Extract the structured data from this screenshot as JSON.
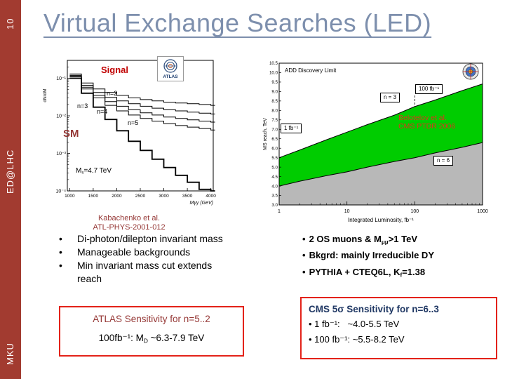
{
  "glyphs": {
    "bullet": "•"
  },
  "colors": {
    "sidebar": "#A23B30",
    "title": "#7D8FAD",
    "signal_red": "#C00000",
    "caption_brown": "#953735",
    "caption_red": "#E0301E",
    "box_border": "#E32219",
    "cms_navy": "#203864",
    "band_green": "#00CC00",
    "below_gray": "#B8B8B8"
  },
  "sidebar": {
    "top_label": "10",
    "middle_label": "ED@LHC",
    "bottom_label": "MKU"
  },
  "title": "Virtual Exchange Searches (LED)",
  "left_plot": {
    "signal_label": "Signal",
    "sm_label": "SM",
    "atlas_logo_text": "ATLAS",
    "curve_labels": [
      "n=2",
      "n=3",
      "n=4",
      "n=5"
    ],
    "ms_label": {
      "pre": "M",
      "sub": "s",
      "post": "=4.7 TeV"
    },
    "caption_line1": "Kabachenko et al.",
    "caption_line2": "ATL-PHYS-2001-012"
  },
  "right_plot": {
    "n3_label": "n = 3",
    "n6_label": "n = 6",
    "lum100_label": "100 fb⁻¹",
    "lum1_label": "1 fb⁻¹",
    "caption_line1": "Belotelov et al.",
    "caption_line2": "CMS PTDR 2006"
  },
  "bullets_left": [
    "Di-photon/dilepton invariant mass",
    "Manageable backgrounds",
    "Min invariant mass cut extends reach"
  ],
  "bullets_right": [
    {
      "pre": "2 OS muons & M",
      "sub": "μμ",
      "post": ">1 TeV"
    },
    {
      "pre": "Bkgrd: mainly Irreducible DY",
      "sub": "",
      "post": ""
    },
    {
      "pre": "PYTHIA + CTEQ6L, K",
      "sub": "f",
      "post": "=1.38"
    }
  ],
  "atlas_box": {
    "line1": "ATLAS Sensitivity for n=5..2",
    "line2": {
      "pre": "100fb⁻¹: M",
      "sub": "D",
      "post": " ~6.3-7.9 TeV"
    }
  },
  "cms_box": {
    "line1": "CMS 5σ Sensitivity for n=6..3",
    "line2": "• 1 fb⁻¹:   ~4.0-5.5 TeV",
    "line3": "• 100 fb⁻¹: ~5.5-8.2 TeV"
  },
  "chart_data": [
    {
      "id": "atlas-invariant-mass-spectrum",
      "type": "line",
      "title": "",
      "xlabel": "Mγγ (GeV)",
      "ylabel": "dN/dM",
      "xlim": [
        950,
        4050
      ],
      "ylim": [
        0.0001,
        0.3
      ],
      "ylog": true,
      "x": [
        1000,
        1250,
        1500,
        1750,
        2000,
        2250,
        2500,
        2750,
        3000,
        3250,
        3500,
        3750,
        4000
      ],
      "x_ticks": [
        1000,
        1500,
        2000,
        2500,
        3000,
        3500,
        4000
      ],
      "y_ticks": [
        {
          "value": 0.1,
          "label": "10⁻¹"
        },
        {
          "value": 0.01,
          "label": "10⁻²"
        },
        {
          "value": 0.001,
          "label": "10⁻³"
        },
        {
          "value": 0.0001,
          "label": "10⁻⁴"
        }
      ],
      "series": [
        {
          "name": "n=2",
          "values": [
            0.13,
            0.075,
            0.052,
            0.042,
            0.035,
            0.03,
            0.027,
            0.025,
            0.023,
            0.022,
            0.021,
            0.02,
            0.019
          ]
        },
        {
          "name": "n=3",
          "values": [
            0.12,
            0.065,
            0.042,
            0.031,
            0.025,
            0.021,
            0.018,
            0.016,
            0.0145,
            0.0135,
            0.0125,
            0.0118,
            0.0112
          ]
        },
        {
          "name": "n=4",
          "values": [
            0.115,
            0.058,
            0.035,
            0.024,
            0.018,
            0.0145,
            0.012,
            0.0105,
            0.0093,
            0.0085,
            0.0078,
            0.0072,
            0.0068
          ]
        },
        {
          "name": "n=5",
          "values": [
            0.11,
            0.052,
            0.03,
            0.019,
            0.0135,
            0.0105,
            0.0085,
            0.0072,
            0.0062,
            0.0055,
            0.005,
            0.0046,
            0.0042
          ]
        },
        {
          "name": "SM",
          "values": [
            0.1,
            0.04,
            0.017,
            0.008,
            0.004,
            0.0021,
            0.0012,
            0.0007,
            0.00042,
            0.00026,
            0.00017,
            0.00011,
            8e-05
          ]
        }
      ]
    },
    {
      "id": "cms-add-discovery-limit",
      "type": "area",
      "title": "ADD Discovery Limit",
      "xlabel": "Integrated Luminosity, fb⁻¹",
      "ylabel": "MS reach, TeV",
      "xlog": true,
      "xlim": [
        1,
        1000
      ],
      "ylim": [
        3.0,
        10.5
      ],
      "x_ticks": [
        1,
        10,
        100,
        1000
      ],
      "x": [
        1,
        2,
        5,
        10,
        20,
        50,
        100,
        200,
        500,
        1000
      ],
      "series": [
        {
          "name": "n = 3",
          "values": [
            5.5,
            5.9,
            6.45,
            6.85,
            7.25,
            7.75,
            8.2,
            8.55,
            9.05,
            9.4
          ]
        },
        {
          "name": "n = 6",
          "values": [
            4.0,
            4.25,
            4.55,
            4.75,
            5.0,
            5.3,
            5.5,
            5.75,
            6.05,
            6.3
          ]
        }
      ],
      "band_color": "#00CC00",
      "below_color": "#B8B8B8"
    }
  ]
}
